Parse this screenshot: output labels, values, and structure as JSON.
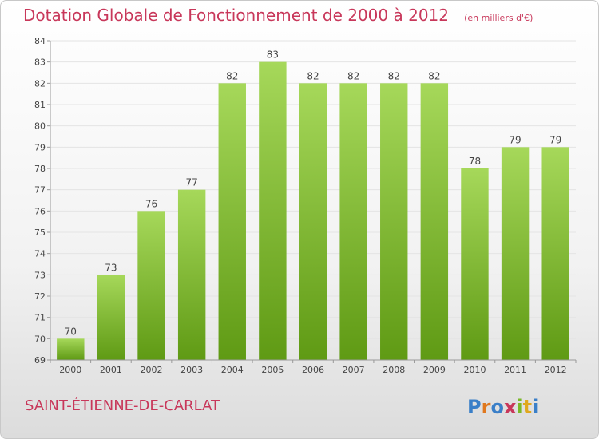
{
  "title": "Dotation Globale de Fonctionnement de 2000 à 2012",
  "unit_note": "(en milliers d'€)",
  "commune": "SAINT-ÉTIENNE-DE-CARLAT",
  "logo_text": "Proxiti",
  "colors": {
    "title": "#c8375a",
    "bar_light": "#a6d85a",
    "bar_dark": "#5f9a14",
    "grid": "#e4e4e4"
  },
  "chart_data": {
    "type": "bar",
    "title": "Dotation Globale de Fonctionnement de 2000 à 2012",
    "subtitle": "(en milliers d'€)",
    "xlabel": "",
    "ylabel": "",
    "categories": [
      "2000",
      "2001",
      "2002",
      "2003",
      "2004",
      "2005",
      "2006",
      "2007",
      "2008",
      "2009",
      "2010",
      "2011",
      "2012"
    ],
    "values": [
      70,
      73,
      76,
      77,
      82,
      83,
      82,
      82,
      82,
      82,
      78,
      79,
      79
    ],
    "ylim": [
      69,
      84
    ],
    "yticks": [
      69,
      70,
      71,
      72,
      73,
      74,
      75,
      76,
      77,
      78,
      79,
      80,
      81,
      82,
      83,
      84
    ],
    "grid": true,
    "legend": "none",
    "data_labels": true
  }
}
